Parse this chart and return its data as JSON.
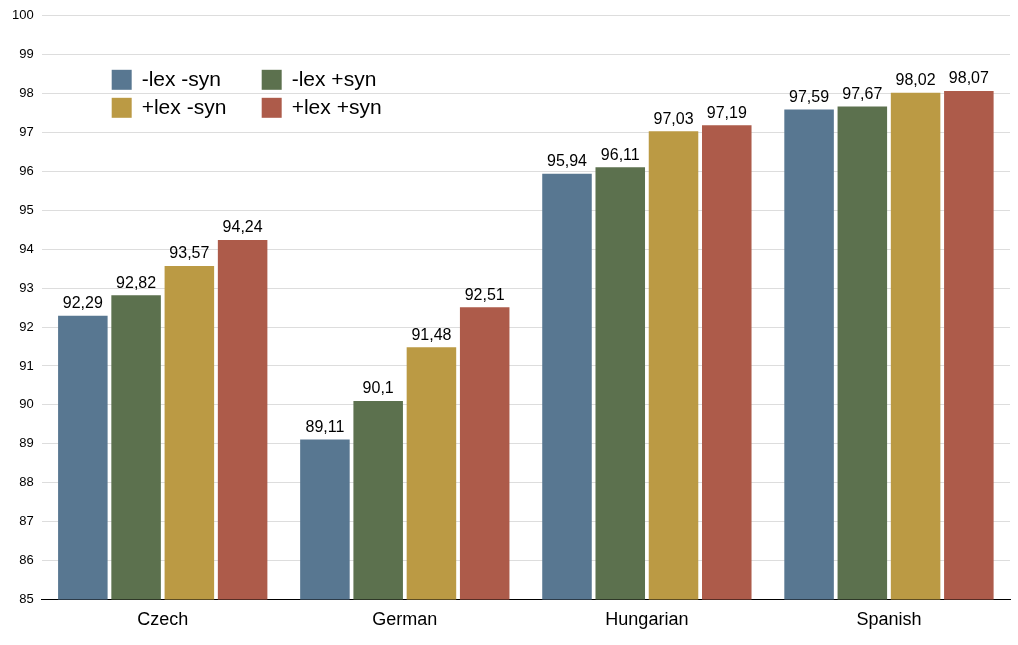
{
  "chart_data": {
    "type": "bar",
    "categories": [
      "Czech",
      "German",
      "Hungarian",
      "Spanish"
    ],
    "series": [
      {
        "name": "-lex -syn",
        "color": "#587791",
        "values": [
          92.29,
          89.11,
          95.94,
          97.59
        ],
        "value_labels": [
          "92,29",
          "89,11",
          "95,94",
          "97,59"
        ]
      },
      {
        "name": "-lex +syn",
        "color": "#5c714e",
        "values": [
          92.82,
          90.1,
          96.11,
          97.67
        ],
        "value_labels": [
          "92,82",
          "90,1",
          "96,11",
          "97,67"
        ]
      },
      {
        "name": "+lex -syn",
        "color": "#bb9a44",
        "values": [
          93.57,
          91.48,
          97.03,
          98.02
        ],
        "value_labels": [
          "93,57",
          "91,48",
          "97,03",
          "98,02"
        ]
      },
      {
        "name": "+lex +syn",
        "color": "#ad5b4a",
        "values": [
          94.24,
          92.51,
          97.19,
          98.07
        ],
        "value_labels": [
          "94,24",
          "92,51",
          "97,19",
          "98,07"
        ]
      }
    ],
    "ylim": [
      85,
      100
    ],
    "yticks": [
      85,
      86,
      87,
      88,
      89,
      90,
      91,
      92,
      93,
      94,
      95,
      96,
      97,
      98,
      99,
      100
    ],
    "grid": "y",
    "legend": "top left"
  }
}
